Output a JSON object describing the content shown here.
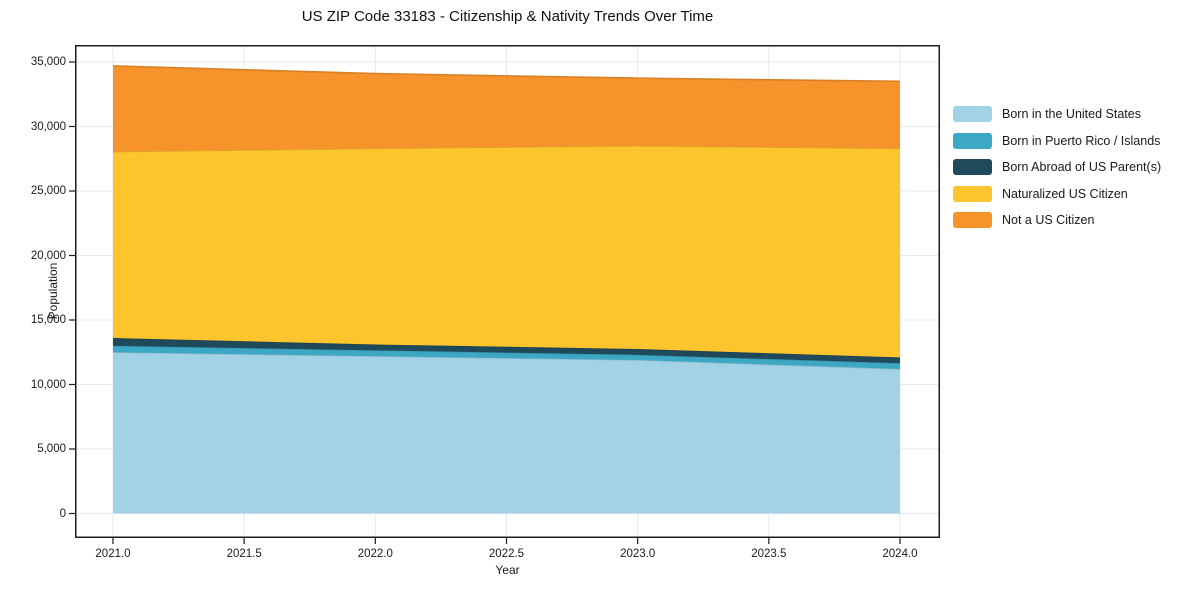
{
  "chart_data": {
    "type": "area",
    "stacked": true,
    "title": "US ZIP Code 33183 - Citizenship & Nativity Trends Over Time",
    "xlabel": "Year",
    "ylabel": "Population",
    "x": [
      2021,
      2022,
      2023,
      2024
    ],
    "series": [
      {
        "name": "Born in the United States",
        "color": "#a2d2e6",
        "values": [
          12500,
          12200,
          11900,
          11200
        ]
      },
      {
        "name": "Born in Puerto Rico / Islands",
        "color": "#3da8c4",
        "values": [
          500,
          450,
          400,
          450
        ]
      },
      {
        "name": "Born Abroad of US Parent(s)",
        "color": "#1f4a5c",
        "values": [
          600,
          450,
          450,
          450
        ]
      },
      {
        "name": "Naturalized US Citizen",
        "color": "#fcc42d",
        "values": [
          14450,
          15200,
          15750,
          16200
        ]
      },
      {
        "name": "Not a US Citizen",
        "color": "#f6932b",
        "values": [
          6650,
          5800,
          5250,
          5200
        ]
      }
    ],
    "stacked_totals": [
      34700,
      34100,
      33750,
      33500
    ],
    "x_ticks": [
      2021.0,
      2021.5,
      2022.0,
      2022.5,
      2023.0,
      2023.5,
      2024.0
    ],
    "x_tick_labels": [
      "2021.0",
      "2021.5",
      "2022.0",
      "2022.5",
      "2023.0",
      "2023.5",
      "2024.0"
    ],
    "y_ticks": [
      0,
      5000,
      10000,
      15000,
      20000,
      25000,
      30000,
      35000
    ],
    "y_tick_labels": [
      "0",
      "5,000",
      "10,000",
      "15,000",
      "20,000",
      "25,000",
      "30,000",
      "35,000"
    ],
    "xlim": [
      2020.855,
      2024.15
    ],
    "ylim": [
      -1900,
      36320
    ],
    "grid": true,
    "legend_position": "right",
    "colors": {
      "grid": "#e9e9f0",
      "axis_border": "#1c1c1c",
      "background": "#ffffff",
      "text": "#1a1a1a"
    }
  }
}
